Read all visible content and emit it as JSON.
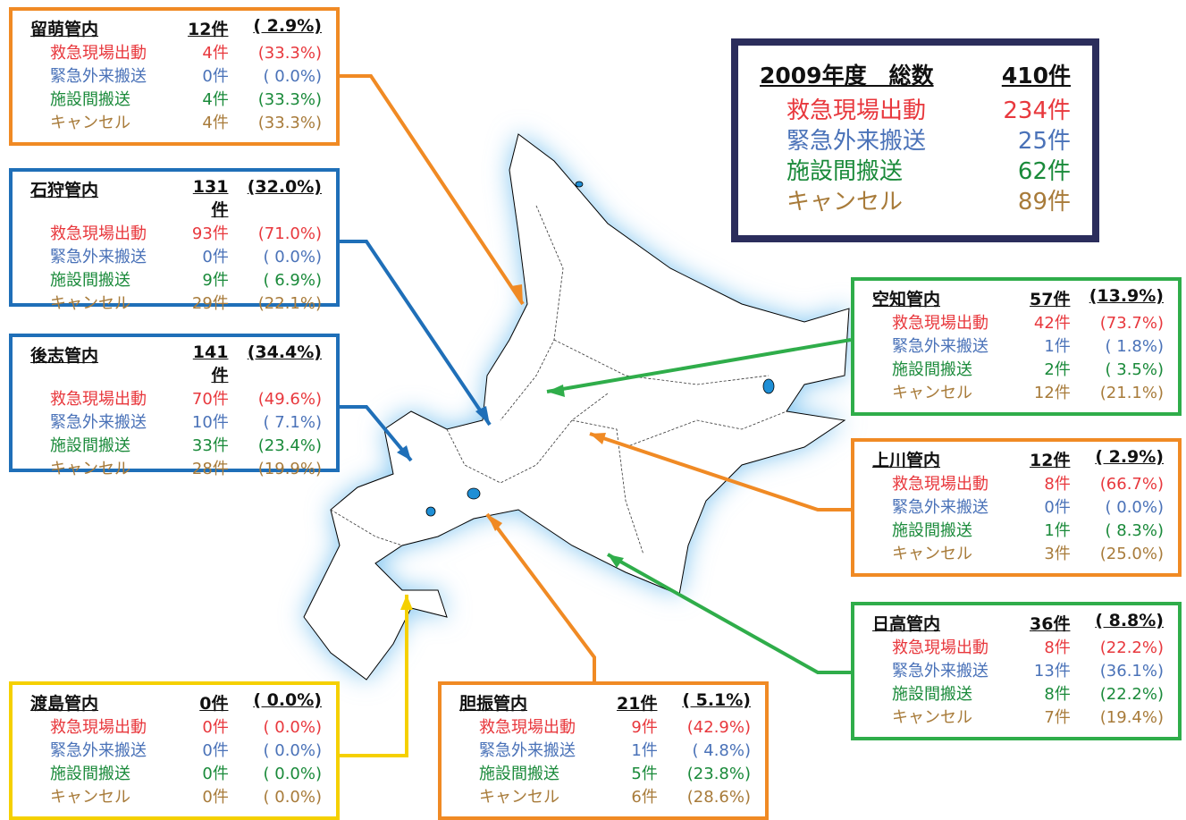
{
  "summary": {
    "title": "2009年度　総数",
    "total": "410件",
    "items": [
      {
        "label": "救急現場出動",
        "value": "234件"
      },
      {
        "label": "緊急外来搬送",
        "value": "25件"
      },
      {
        "label": "施設間搬送",
        "value": "62件"
      },
      {
        "label": "キャンセル",
        "value": "89件"
      }
    ]
  },
  "regions": [
    {
      "name": "留萌管内",
      "count": "12件",
      "pct": "( 2.9%)",
      "rows": [
        {
          "label": "救急現場出動",
          "count": "4件",
          "pct": "(33.3%)"
        },
        {
          "label": "緊急外来搬送",
          "count": "0件",
          "pct": "( 0.0%)"
        },
        {
          "label": "施設間搬送",
          "count": "4件",
          "pct": "(33.3%)"
        },
        {
          "label": "キャンセル",
          "count": "4件",
          "pct": "(33.3%)"
        }
      ]
    },
    {
      "name": "石狩管内",
      "count": "131件",
      "pct": "(32.0%)",
      "rows": [
        {
          "label": "救急現場出動",
          "count": "93件",
          "pct": "(71.0%)"
        },
        {
          "label": "緊急外来搬送",
          "count": "0件",
          "pct": "( 0.0%)"
        },
        {
          "label": "施設間搬送",
          "count": "9件",
          "pct": "( 6.9%)"
        },
        {
          "label": "キャンセル",
          "count": "29件",
          "pct": "(22.1%)"
        }
      ]
    },
    {
      "name": "後志管内",
      "count": "141件",
      "pct": "(34.4%)",
      "rows": [
        {
          "label": "救急現場出動",
          "count": "70件",
          "pct": "(49.6%)"
        },
        {
          "label": "緊急外来搬送",
          "count": "10件",
          "pct": "( 7.1%)"
        },
        {
          "label": "施設間搬送",
          "count": "33件",
          "pct": "(23.4%)"
        },
        {
          "label": "キャンセル",
          "count": "28件",
          "pct": "(19.9%)"
        }
      ]
    },
    {
      "name": "渡島管内",
      "count": "0件",
      "pct": "( 0.0%)",
      "rows": [
        {
          "label": "救急現場出動",
          "count": "0件",
          "pct": "( 0.0%)"
        },
        {
          "label": "緊急外来搬送",
          "count": "0件",
          "pct": "( 0.0%)"
        },
        {
          "label": "施設間搬送",
          "count": "0件",
          "pct": "( 0.0%)"
        },
        {
          "label": "キャンセル",
          "count": "0件",
          "pct": "( 0.0%)"
        }
      ]
    },
    {
      "name": "胆振管内",
      "count": "21件",
      "pct": "( 5.1%)",
      "rows": [
        {
          "label": "救急現場出動",
          "count": "9件",
          "pct": "(42.9%)"
        },
        {
          "label": "緊急外来搬送",
          "count": "1件",
          "pct": "( 4.8%)"
        },
        {
          "label": "施設間搬送",
          "count": "5件",
          "pct": "(23.8%)"
        },
        {
          "label": "キャンセル",
          "count": "6件",
          "pct": "(28.6%)"
        }
      ]
    },
    {
      "name": "空知管内",
      "count": "57件",
      "pct": "(13.9%)",
      "rows": [
        {
          "label": "救急現場出動",
          "count": "42件",
          "pct": "(73.7%)"
        },
        {
          "label": "緊急外来搬送",
          "count": "1件",
          "pct": "( 1.8%)"
        },
        {
          "label": "施設間搬送",
          "count": "2件",
          "pct": "( 3.5%)"
        },
        {
          "label": "キャンセル",
          "count": "12件",
          "pct": "(21.1%)"
        }
      ]
    },
    {
      "name": "上川管内",
      "count": "12件",
      "pct": "( 2.9%)",
      "rows": [
        {
          "label": "救急現場出動",
          "count": "8件",
          "pct": "(66.7%)"
        },
        {
          "label": "緊急外来搬送",
          "count": "0件",
          "pct": "( 0.0%)"
        },
        {
          "label": "施設間搬送",
          "count": "1件",
          "pct": "( 8.3%)"
        },
        {
          "label": "キャンセル",
          "count": "3件",
          "pct": "(25.0%)"
        }
      ]
    },
    {
      "name": "日高管内",
      "count": "36件",
      "pct": "( 8.8%)",
      "rows": [
        {
          "label": "救急現場出動",
          "count": "8件",
          "pct": "(22.2%)"
        },
        {
          "label": "緊急外来搬送",
          "count": "13件",
          "pct": "(36.1%)"
        },
        {
          "label": "施設間搬送",
          "count": "8件",
          "pct": "(22.2%)"
        },
        {
          "label": "キャンセル",
          "count": "7件",
          "pct": "(19.4%)"
        }
      ]
    }
  ]
}
